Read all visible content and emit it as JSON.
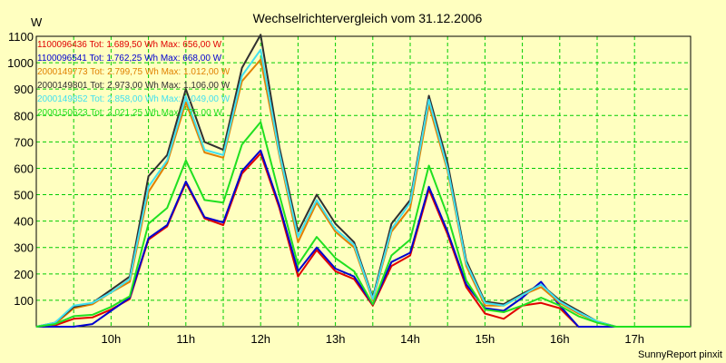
{
  "chart_data": {
    "type": "line",
    "title": "Wechselrichtervergleich vom 31.12.2006",
    "ylabel": "W",
    "xlabel": "",
    "ylim": [
      0,
      1100
    ],
    "yticks": [
      100,
      200,
      300,
      400,
      500,
      600,
      700,
      800,
      900,
      1000,
      1100
    ],
    "xticks": [
      "10h",
      "11h",
      "12h",
      "13h",
      "14h",
      "15h",
      "16h",
      "17h"
    ],
    "grid": true,
    "legend_position": "top-left",
    "x": [
      "09:00",
      "09:15",
      "09:30",
      "09:45",
      "10:00",
      "10:15",
      "10:30",
      "10:45",
      "11:00",
      "11:15",
      "11:30",
      "11:45",
      "12:00",
      "12:15",
      "12:30",
      "12:45",
      "13:00",
      "13:15",
      "13:30",
      "13:45",
      "14:00",
      "14:15",
      "14:30",
      "14:45",
      "15:00",
      "15:15",
      "15:30",
      "15:45",
      "16:00",
      "16:15",
      "16:30",
      "16:45",
      "17:00",
      "17:15",
      "17:30",
      "17:45"
    ],
    "series": [
      {
        "name": "1100096436 Tot: 1.689,50 Wh Max: 656,00 W",
        "color": "#e00000",
        "values": [
          0,
          5,
          30,
          35,
          65,
          105,
          330,
          380,
          545,
          410,
          385,
          580,
          656,
          450,
          190,
          290,
          210,
          180,
          80,
          230,
          270,
          520,
          350,
          150,
          50,
          30,
          80,
          90,
          70,
          0,
          0,
          0,
          0,
          0,
          0,
          0
        ]
      },
      {
        "name": "1100096541 Tot: 1.762,25 Wh Max: 668,00 W",
        "color": "#0000d0",
        "values": [
          0,
          0,
          0,
          10,
          60,
          110,
          335,
          385,
          550,
          415,
          395,
          590,
          668,
          460,
          210,
          300,
          220,
          190,
          85,
          245,
          280,
          530,
          360,
          160,
          70,
          60,
          110,
          170,
          80,
          0,
          0,
          0,
          0,
          0,
          0,
          0
        ]
      },
      {
        "name": "2000149773 Tot: 2.799,75 Wh Max: 1.012,00 W",
        "color": "#e08000",
        "values": [
          0,
          10,
          70,
          85,
          130,
          170,
          510,
          620,
          850,
          660,
          640,
          930,
          1012,
          650,
          320,
          470,
          360,
          300,
          100,
          360,
          450,
          840,
          590,
          230,
          80,
          80,
          120,
          150,
          90,
          50,
          20,
          0,
          0,
          0,
          0,
          0
        ]
      },
      {
        "name": "2000149801 Tot: 2.973,00 Wh Max: 1.106,00 W",
        "color": "#303030",
        "values": [
          0,
          15,
          75,
          90,
          140,
          190,
          570,
          650,
          900,
          700,
          670,
          980,
          1106,
          680,
          360,
          500,
          390,
          320,
          110,
          390,
          480,
          875,
          620,
          250,
          95,
          85,
          125,
          160,
          100,
          60,
          20,
          0,
          0,
          0,
          0,
          0
        ]
      },
      {
        "name": "2000149852 Tot: 2.858,00 Wh Max: 1.049,00 W",
        "color": "#40e0f0",
        "values": [
          0,
          15,
          80,
          90,
          130,
          180,
          530,
          630,
          870,
          670,
          650,
          950,
          1049,
          660,
          340,
          480,
          370,
          310,
          105,
          370,
          470,
          860,
          600,
          240,
          90,
          80,
          120,
          160,
          95,
          55,
          20,
          0,
          0,
          0,
          0,
          0
        ]
      },
      {
        "name": "2000150623 Tot: 2.021,25 Wh Max: 775,00 W",
        "color": "#20e020",
        "values": [
          0,
          10,
          40,
          45,
          75,
          115,
          390,
          450,
          630,
          480,
          470,
          690,
          775,
          500,
          235,
          340,
          260,
          210,
          85,
          270,
          330,
          610,
          420,
          175,
          65,
          55,
          80,
          110,
          80,
          40,
          15,
          0,
          0,
          0,
          0,
          0
        ]
      }
    ]
  },
  "footer": "SunnyReport pinxit"
}
